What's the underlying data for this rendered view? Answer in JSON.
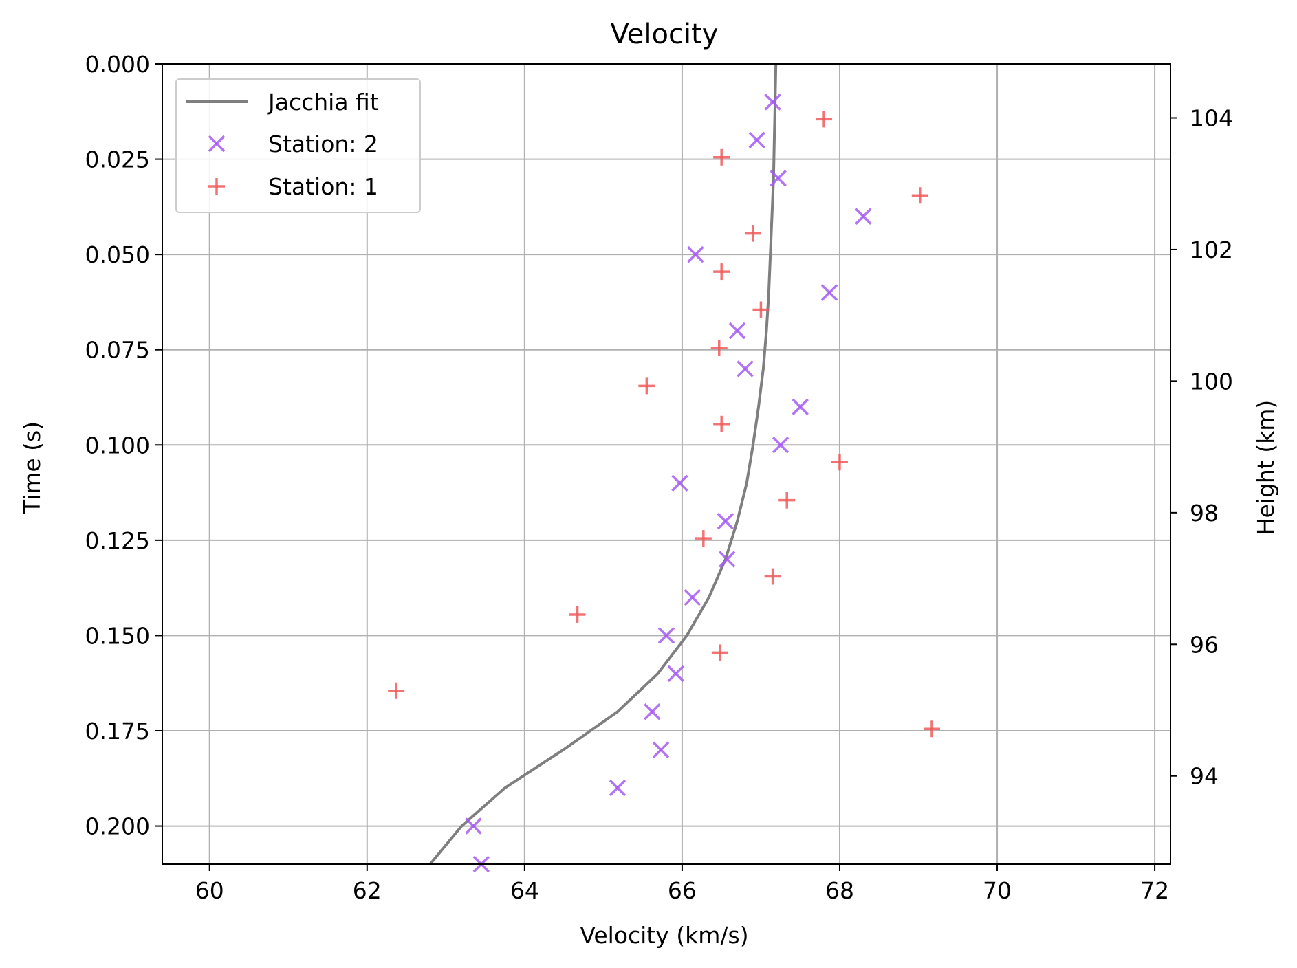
{
  "chart_data": {
    "type": "scatter",
    "title": "Velocity",
    "xlabel": "Velocity (km/s)",
    "ylabel": "Time (s)",
    "y2label": "Height (km)",
    "xlim": [
      59.4,
      72.2
    ],
    "ylim": [
      0.0,
      0.21
    ],
    "y_inverted": true,
    "y2lim": [
      104.82,
      92.66
    ],
    "x_ticks": [
      "60",
      "62",
      "64",
      "66",
      "68",
      "70",
      "72"
    ],
    "y_ticks": [
      "0.000",
      "0.025",
      "0.050",
      "0.075",
      "0.100",
      "0.125",
      "0.150",
      "0.175",
      "0.200"
    ],
    "y2_ticks": [
      "104",
      "102",
      "100",
      "98",
      "96",
      "94"
    ],
    "grid": true,
    "legend_position": "top-left",
    "colors": {
      "jacchia": "#7f7f7f",
      "station2": "#a55af2",
      "station1": "#f05a5a"
    },
    "series": [
      {
        "name": "Jacchia fit",
        "kind": "line",
        "points": [
          [
            67.19,
            0.0
          ],
          [
            67.18,
            0.01
          ],
          [
            67.17,
            0.02
          ],
          [
            67.16,
            0.03
          ],
          [
            67.14,
            0.04
          ],
          [
            67.12,
            0.05
          ],
          [
            67.1,
            0.06
          ],
          [
            67.07,
            0.07
          ],
          [
            67.03,
            0.08
          ],
          [
            66.97,
            0.09
          ],
          [
            66.9,
            0.1
          ],
          [
            66.82,
            0.11
          ],
          [
            66.7,
            0.12
          ],
          [
            66.55,
            0.13
          ],
          [
            66.34,
            0.14
          ],
          [
            66.06,
            0.15
          ],
          [
            65.69,
            0.16
          ],
          [
            65.18,
            0.17
          ],
          [
            64.49,
            0.18
          ],
          [
            63.75,
            0.19
          ],
          [
            63.2,
            0.2
          ],
          [
            62.8,
            0.21
          ]
        ]
      },
      {
        "name": "Station: 2",
        "kind": "scatter",
        "marker": "x",
        "points": [
          [
            67.15,
            0.01
          ],
          [
            66.95,
            0.02
          ],
          [
            67.22,
            0.03
          ],
          [
            68.3,
            0.04
          ],
          [
            66.17,
            0.05
          ],
          [
            67.87,
            0.06
          ],
          [
            66.7,
            0.07
          ],
          [
            66.8,
            0.08
          ],
          [
            67.5,
            0.09
          ],
          [
            67.25,
            0.1
          ],
          [
            65.97,
            0.11
          ],
          [
            66.55,
            0.12
          ],
          [
            66.57,
            0.13
          ],
          [
            66.13,
            0.14
          ],
          [
            65.8,
            0.15
          ],
          [
            65.92,
            0.16
          ],
          [
            65.62,
            0.17
          ],
          [
            65.73,
            0.18
          ],
          [
            65.18,
            0.19
          ],
          [
            63.35,
            0.2
          ],
          [
            63.45,
            0.21
          ]
        ]
      },
      {
        "name": "Station: 1",
        "kind": "scatter",
        "marker": "+",
        "points": [
          [
            67.8,
            0.0145
          ],
          [
            66.5,
            0.0245
          ],
          [
            69.02,
            0.0345
          ],
          [
            66.9,
            0.0445
          ],
          [
            66.5,
            0.0545
          ],
          [
            67.0,
            0.0645
          ],
          [
            66.47,
            0.0745
          ],
          [
            65.55,
            0.0845
          ],
          [
            66.5,
            0.0945
          ],
          [
            68.0,
            0.1045
          ],
          [
            67.33,
            0.1145
          ],
          [
            66.27,
            0.1245
          ],
          [
            67.15,
            0.1345
          ],
          [
            64.67,
            0.1445
          ],
          [
            66.48,
            0.1545
          ],
          [
            62.37,
            0.1645
          ],
          [
            69.17,
            0.1745
          ]
        ]
      }
    ]
  }
}
